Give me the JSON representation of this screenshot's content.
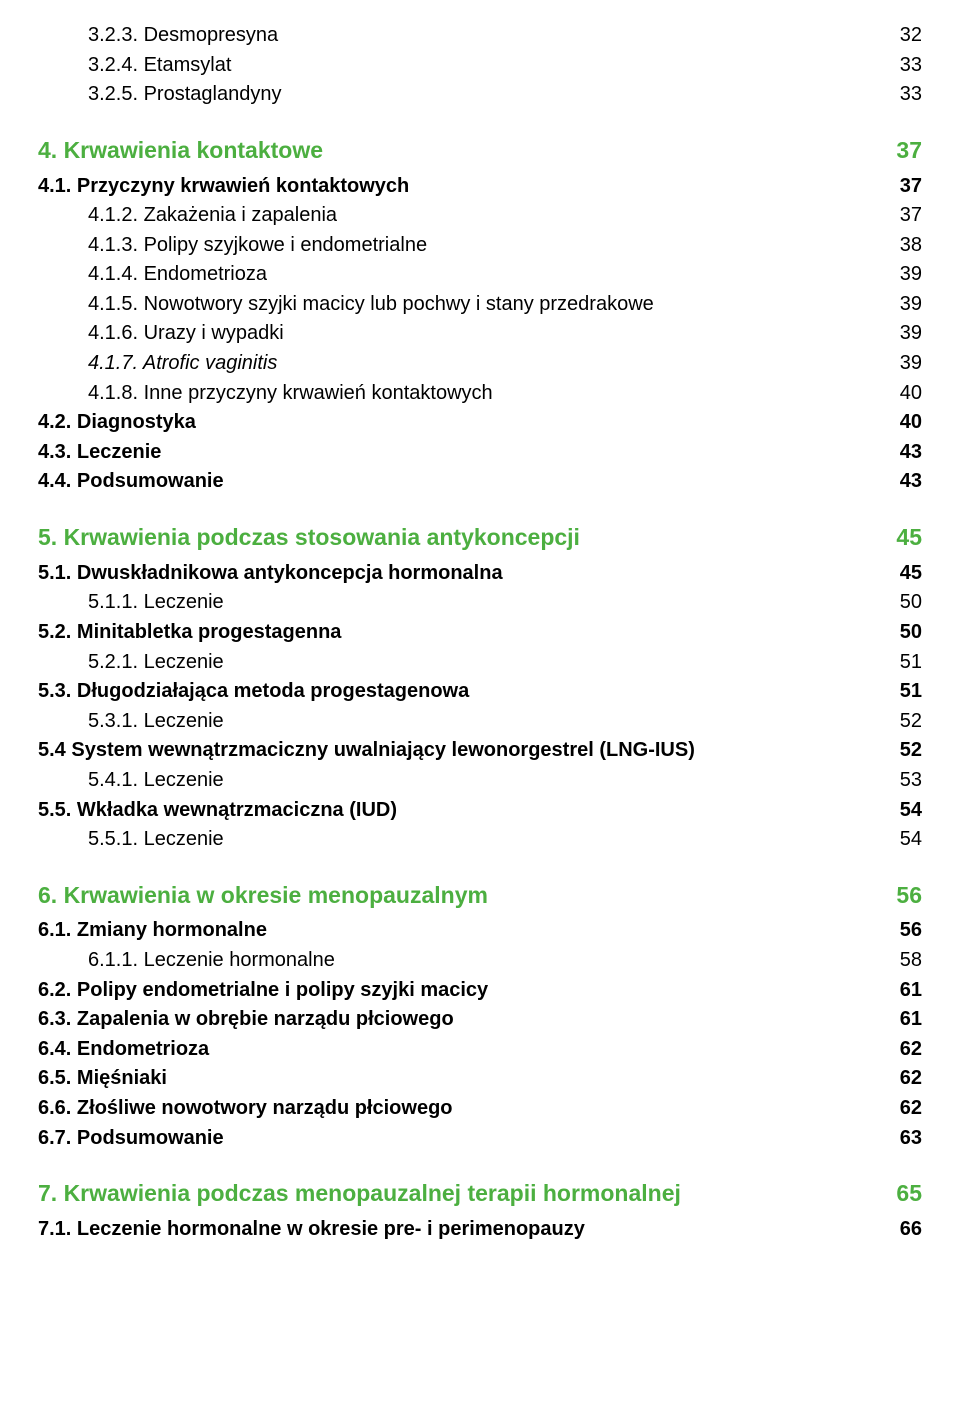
{
  "colors": {
    "heading": "#4caf40",
    "text": "#000000",
    "background": "#ffffff"
  },
  "typography": {
    "level1_fontsize": 23,
    "level2_fontsize": 20,
    "level3_fontsize": 20,
    "font_family": "Arial"
  },
  "entries": [
    {
      "level": 3,
      "num": "3.2.3.",
      "title": "Desmopresyna",
      "page": "32"
    },
    {
      "level": 3,
      "num": "3.2.4.",
      "title": "Etamsylat",
      "page": "33"
    },
    {
      "level": 3,
      "num": "3.2.5.",
      "title": "Prostaglandyny",
      "page": "33"
    },
    {
      "level": 1,
      "num": "4.",
      "title": "Krwawienia kontaktowe",
      "page": "37"
    },
    {
      "level": 2,
      "num": "4.1.",
      "title": "Przyczyny krwawień kontaktowych",
      "page": "37"
    },
    {
      "level": 3,
      "num": "4.1.2.",
      "title": "Zakażenia i zapalenia",
      "page": "37"
    },
    {
      "level": 3,
      "num": "4.1.3.",
      "title": "Polipy szyjkowe i endometrialne",
      "page": "38"
    },
    {
      "level": 3,
      "num": "4.1.4.",
      "title": "Endometrioza",
      "page": "39"
    },
    {
      "level": 3,
      "num": "4.1.5.",
      "title": "Nowotwory szyjki macicy lub pochwy i stany przedrakowe",
      "page": "39"
    },
    {
      "level": 3,
      "num": "4.1.6.",
      "title": "Urazy i wypadki",
      "page": "39"
    },
    {
      "level": 3,
      "num": "4.1.7.",
      "title": "Atrofic vaginitis",
      "page": "39",
      "italic": true
    },
    {
      "level": 3,
      "num": "4.1.8.",
      "title": "Inne przyczyny krwawień kontaktowych",
      "page": "40"
    },
    {
      "level": 2,
      "num": "4.2.",
      "title": "Diagnostyka",
      "page": "40"
    },
    {
      "level": 2,
      "num": "4.3.",
      "title": "Leczenie",
      "page": "43"
    },
    {
      "level": 2,
      "num": "4.4.",
      "title": "Podsumowanie",
      "page": "43"
    },
    {
      "level": 1,
      "num": "5.",
      "title": "Krwawienia podczas stosowania antykoncepcji",
      "page": "45"
    },
    {
      "level": 2,
      "num": "5.1.",
      "title": "Dwuskładnikowa antykoncepcja hormonalna",
      "page": "45"
    },
    {
      "level": 3,
      "num": "5.1.1.",
      "title": "Leczenie",
      "page": "50"
    },
    {
      "level": 2,
      "num": "5.2.",
      "title": "Minitabletka progestagenna",
      "page": "50"
    },
    {
      "level": 3,
      "num": "5.2.1.",
      "title": "Leczenie",
      "page": "51"
    },
    {
      "level": 2,
      "num": "5.3.",
      "title": "Długodziałająca metoda progestagenowa",
      "page": "51"
    },
    {
      "level": 3,
      "num": "5.3.1.",
      "title": "Leczenie",
      "page": "52"
    },
    {
      "level": 2,
      "num": "5.4",
      "title": "System wewnątrzmaciczny uwalniający lewonorgestrel (LNG-IUS)",
      "page": "52"
    },
    {
      "level": 3,
      "num": "5.4.1.",
      "title": "Leczenie",
      "page": "53"
    },
    {
      "level": 2,
      "num": "5.5.",
      "title": "Wkładka wewnątrzmaciczna (IUD)",
      "page": "54"
    },
    {
      "level": 3,
      "num": "5.5.1.",
      "title": "Leczenie",
      "page": "54"
    },
    {
      "level": 1,
      "num": "6.",
      "title": "Krwawienia w okresie menopauzalnym",
      "page": "56"
    },
    {
      "level": 2,
      "num": "6.1.",
      "title": "Zmiany hormonalne",
      "page": "56"
    },
    {
      "level": 3,
      "num": "6.1.1.",
      "title": "Leczenie hormonalne",
      "page": "58"
    },
    {
      "level": 2,
      "num": "6.2.",
      "title": "Polipy endometrialne i polipy szyjki macicy",
      "page": "61"
    },
    {
      "level": 2,
      "num": "6.3.",
      "title": "Zapalenia w obrębie narządu płciowego",
      "page": "61"
    },
    {
      "level": 2,
      "num": "6.4.",
      "title": "Endometrioza",
      "page": "62"
    },
    {
      "level": 2,
      "num": "6.5.",
      "title": "Mięśniaki",
      "page": "62"
    },
    {
      "level": 2,
      "num": "6.6.",
      "title": "Złośliwe nowotwory narządu płciowego",
      "page": "62"
    },
    {
      "level": 2,
      "num": "6.7.",
      "title": "Podsumowanie",
      "page": "63"
    },
    {
      "level": 1,
      "num": "7.",
      "title": "Krwawienia podczas menopauzalnej terapii hormonalnej",
      "page": "65"
    },
    {
      "level": 2,
      "num": "7.1.",
      "title": "Leczenie hormonalne w okresie pre- i perimenopauzy",
      "page": "66"
    }
  ]
}
